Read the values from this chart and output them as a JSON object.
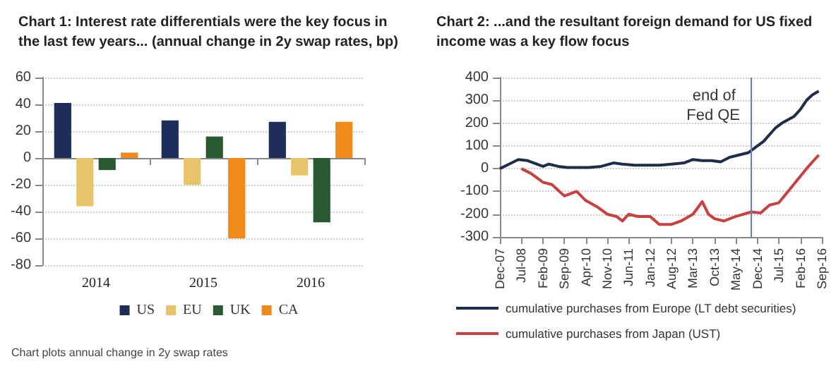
{
  "chart_data": [
    {
      "type": "bar",
      "title": "Chart 1: Interest rate differentials were the key focus in the last few years... (annual change in 2y swap rates, bp)",
      "categories": [
        "2014",
        "2015",
        "2016"
      ],
      "series": [
        {
          "name": "US",
          "color": "#1f2d5a",
          "values": [
            41,
            28,
            27
          ]
        },
        {
          "name": "EU",
          "color": "#e8c36a",
          "values": [
            -36,
            -20,
            -13
          ]
        },
        {
          "name": "UK",
          "color": "#2a5a32",
          "values": [
            -9,
            16,
            -48
          ]
        },
        {
          "name": "CA",
          "color": "#f08a1c",
          "values": [
            4,
            -60,
            27
          ]
        }
      ],
      "ylim": [
        -80,
        60
      ],
      "yticks": [
        -80,
        -60,
        -40,
        -20,
        0,
        20,
        40,
        60
      ],
      "grid": "y",
      "legend": "bottom",
      "annotations": [
        "Chart plots annual change in 2y swap rates"
      ]
    },
    {
      "type": "line",
      "title": "Chart 2: ...and the resultant foreign demand for US fixed income was a key flow focus",
      "series": [
        {
          "name": "cumulative purchases from Europe (LT debt securities)",
          "color": "#1f2d4a",
          "x": [
            "2007-12",
            "2008-03",
            "2008-06",
            "2008-09",
            "2008-12",
            "2009-02",
            "2009-04",
            "2009-07",
            "2009-10",
            "2010-01",
            "2010-05",
            "2010-09",
            "2011-01",
            "2011-04",
            "2011-08",
            "2011-12",
            "2012-04",
            "2012-08",
            "2012-12",
            "2013-03",
            "2013-06",
            "2013-09",
            "2013-12",
            "2014-03",
            "2014-06",
            "2014-09",
            "2014-12",
            "2015-02",
            "2015-04",
            "2015-06",
            "2015-08",
            "2015-10",
            "2015-12",
            "2016-02",
            "2016-04",
            "2016-06",
            "2016-08"
          ],
          "values": [
            0,
            20,
            40,
            35,
            20,
            10,
            20,
            10,
            5,
            5,
            5,
            10,
            25,
            20,
            15,
            15,
            15,
            20,
            25,
            40,
            35,
            35,
            30,
            50,
            60,
            70,
            100,
            120,
            150,
            180,
            200,
            215,
            230,
            260,
            300,
            325,
            340
          ]
        },
        {
          "name": "cumulative purchases from Japan (UST)",
          "color": "#c84040",
          "x": [
            "2008-07",
            "2008-10",
            "2009-02",
            "2009-05",
            "2009-09",
            "2010-01",
            "2010-04",
            "2010-08",
            "2010-11",
            "2011-02",
            "2011-04",
            "2011-06",
            "2011-09",
            "2012-01",
            "2012-04",
            "2012-08",
            "2012-11",
            "2013-03",
            "2013-06",
            "2013-08",
            "2013-10",
            "2014-01",
            "2014-05",
            "2014-10",
            "2015-01",
            "2015-04",
            "2015-07",
            "2015-10",
            "2016-01",
            "2016-04",
            "2016-08"
          ],
          "values": [
            0,
            -20,
            -60,
            -70,
            -120,
            -100,
            -140,
            -170,
            -200,
            -210,
            -230,
            -200,
            -210,
            -210,
            -245,
            -245,
            -230,
            -200,
            -145,
            -200,
            -220,
            -230,
            -210,
            -190,
            -195,
            -160,
            -150,
            -100,
            -50,
            0,
            60
          ]
        }
      ],
      "xlim": [
        "2007-12",
        "2016-09"
      ],
      "xticks": [
        {
          "value": "2007-12",
          "label": "Dec-07"
        },
        {
          "value": "2008-07",
          "label": "Jul-08"
        },
        {
          "value": "2009-02",
          "label": "Feb-09"
        },
        {
          "value": "2009-09",
          "label": "Sep-09"
        },
        {
          "value": "2010-04",
          "label": "Apr-10"
        },
        {
          "value": "2010-11",
          "label": "Nov-10"
        },
        {
          "value": "2011-06",
          "label": "Jun-11"
        },
        {
          "value": "2012-01",
          "label": "Jan-12"
        },
        {
          "value": "2012-08",
          "label": "Aug-12"
        },
        {
          "value": "2013-03",
          "label": "Mar-13"
        },
        {
          "value": "2013-10",
          "label": "Oct-13"
        },
        {
          "value": "2014-05",
          "label": "May-14"
        },
        {
          "value": "2014-12",
          "label": "Dec-14"
        },
        {
          "value": "2015-07",
          "label": "Jul-15"
        },
        {
          "value": "2016-02",
          "label": "Feb-16"
        },
        {
          "value": "2016-09",
          "label": "Sep-16"
        }
      ],
      "ylim": [
        -300,
        400
      ],
      "yticks": [
        -300,
        -200,
        -100,
        0,
        100,
        200,
        300,
        400
      ],
      "grid": "y",
      "legend": "bottom",
      "marker": "none",
      "ref_lines": [
        {
          "axis": "x",
          "value": "2014-10",
          "label": "end of Fed QE",
          "color": "#5b7fc0"
        }
      ]
    }
  ]
}
